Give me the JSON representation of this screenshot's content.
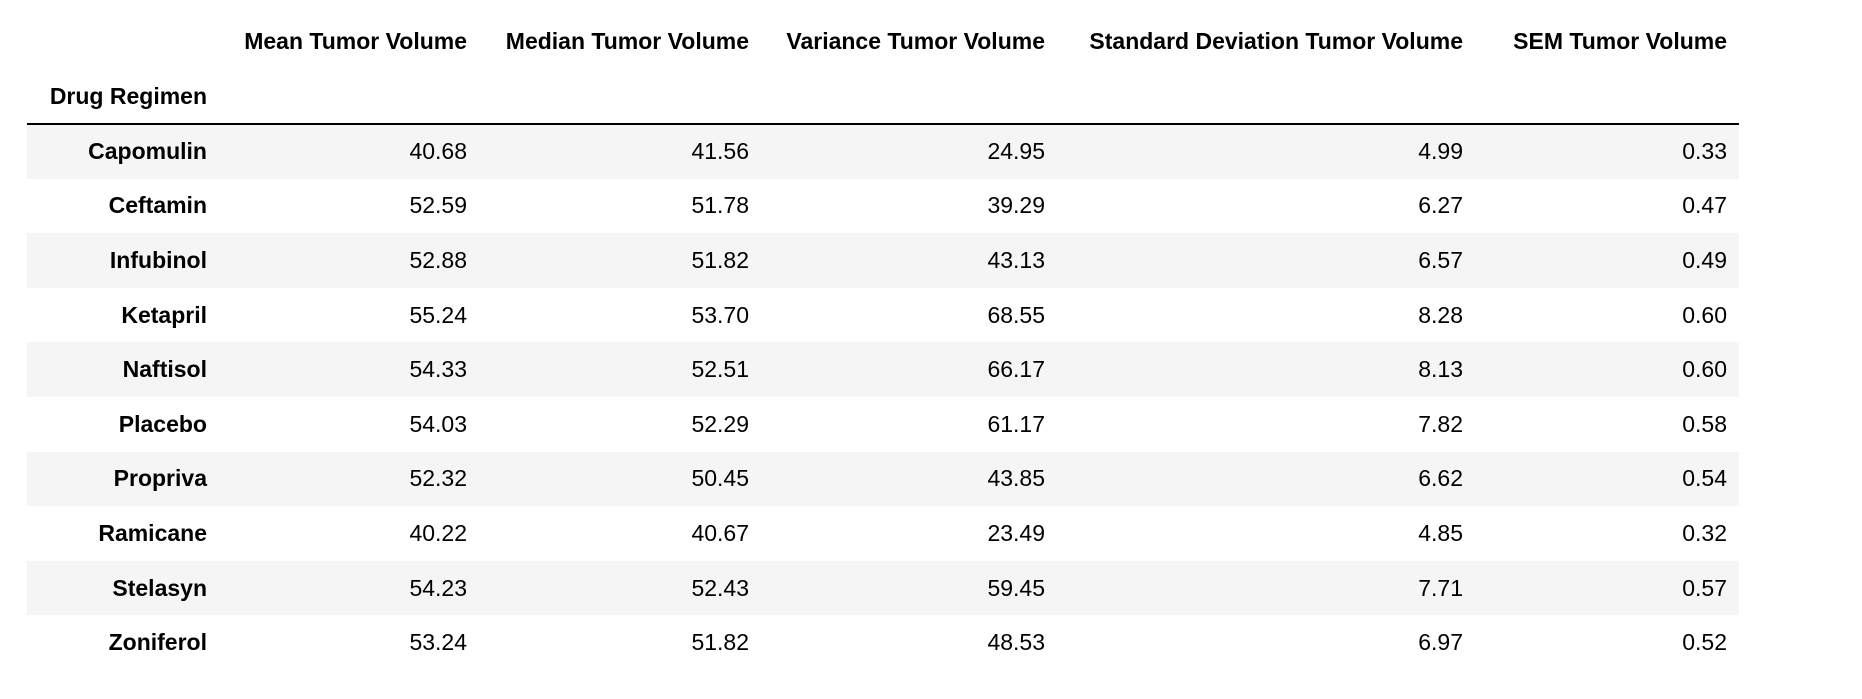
{
  "table": {
    "index_name": "Drug Regimen",
    "columns": [
      "Mean Tumor Volume",
      "Median Tumor Volume",
      "Variance Tumor Volume",
      "Standard Deviation Tumor Volume",
      "SEM Tumor Volume"
    ],
    "rows": [
      {
        "label": "Capomulin",
        "values": [
          "40.68",
          "41.56",
          "24.95",
          "4.99",
          "0.33"
        ]
      },
      {
        "label": "Ceftamin",
        "values": [
          "52.59",
          "51.78",
          "39.29",
          "6.27",
          "0.47"
        ]
      },
      {
        "label": "Infubinol",
        "values": [
          "52.88",
          "51.82",
          "43.13",
          "6.57",
          "0.49"
        ]
      },
      {
        "label": "Ketapril",
        "values": [
          "55.24",
          "53.70",
          "68.55",
          "8.28",
          "0.60"
        ]
      },
      {
        "label": "Naftisol",
        "values": [
          "54.33",
          "52.51",
          "66.17",
          "8.13",
          "0.60"
        ]
      },
      {
        "label": "Placebo",
        "values": [
          "54.03",
          "52.29",
          "61.17",
          "7.82",
          "0.58"
        ]
      },
      {
        "label": "Propriva",
        "values": [
          "52.32",
          "50.45",
          "43.85",
          "6.62",
          "0.54"
        ]
      },
      {
        "label": "Ramicane",
        "values": [
          "40.22",
          "40.67",
          "23.49",
          "4.85",
          "0.32"
        ]
      },
      {
        "label": "Stelasyn",
        "values": [
          "54.23",
          "52.43",
          "59.45",
          "7.71",
          "0.57"
        ]
      },
      {
        "label": "Zoniferol",
        "values": [
          "53.24",
          "51.82",
          "48.53",
          "6.97",
          "0.52"
        ]
      }
    ]
  }
}
